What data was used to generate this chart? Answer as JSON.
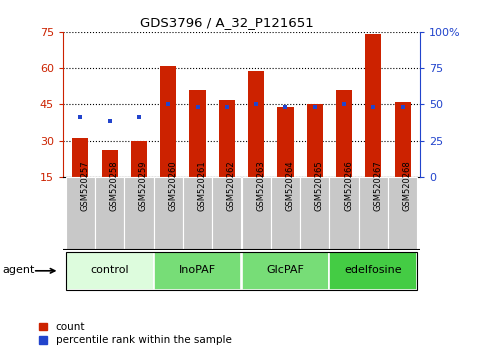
{
  "title": "GDS3796 / A_32_P121651",
  "samples": [
    "GSM520257",
    "GSM520258",
    "GSM520259",
    "GSM520260",
    "GSM520261",
    "GSM520262",
    "GSM520263",
    "GSM520264",
    "GSM520265",
    "GSM520266",
    "GSM520267",
    "GSM520268"
  ],
  "bar_values": [
    31,
    26,
    30,
    61,
    51,
    47,
    59,
    44,
    45,
    51,
    74,
    46
  ],
  "percentile_values_left": [
    40,
    38,
    40,
    45,
    44,
    44,
    45,
    44,
    44,
    45,
    44,
    44
  ],
  "bar_color": "#cc2200",
  "percentile_color": "#2244cc",
  "ylim_left": [
    15,
    75
  ],
  "ylim_right": [
    0,
    100
  ],
  "yticks_left": [
    15,
    30,
    45,
    60,
    75
  ],
  "yticks_right": [
    0,
    25,
    50,
    75,
    100
  ],
  "ytick_labels_right": [
    "0",
    "25",
    "50",
    "75",
    "100%"
  ],
  "groups": [
    {
      "label": "control",
      "start": 0,
      "end": 3,
      "color": "#ddfcdd"
    },
    {
      "label": "InoPAF",
      "start": 3,
      "end": 6,
      "color": "#77dd77"
    },
    {
      "label": "GlcPAF",
      "start": 6,
      "end": 9,
      "color": "#77dd77"
    },
    {
      "label": "edelfosine",
      "start": 9,
      "end": 12,
      "color": "#44cc44"
    }
  ],
  "legend_count_color": "#cc2200",
  "legend_pct_color": "#2244cc",
  "agent_label": "agent",
  "tick_bg_color": "#c8c8c8",
  "bar_bottom": 15
}
